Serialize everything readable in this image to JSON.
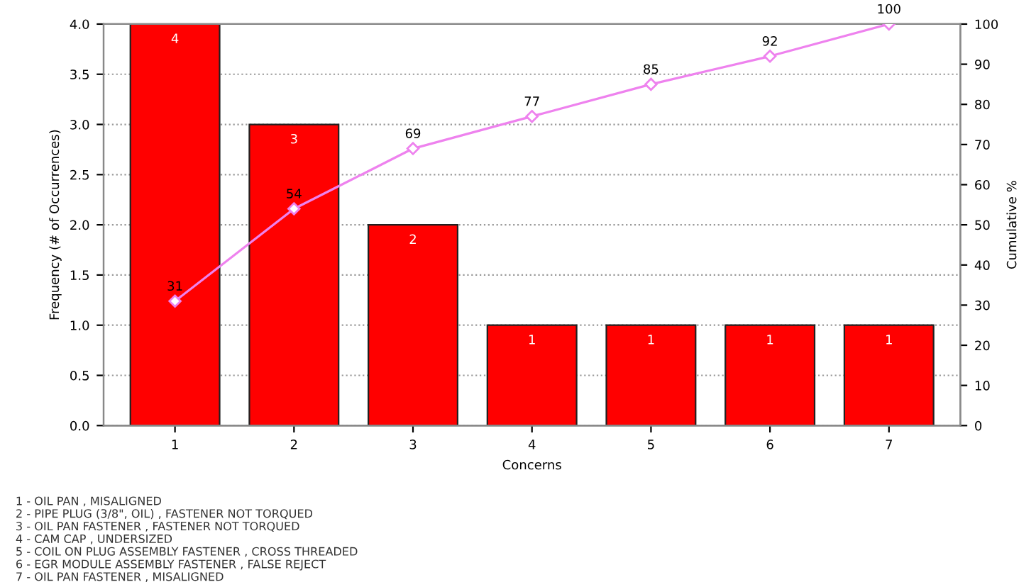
{
  "chart_data": {
    "type": "bar",
    "xlabel": "Concerns",
    "ylabel": "Frequency (# of Occurrences)",
    "y2label": "Cumulative %",
    "categories": [
      "1",
      "2",
      "3",
      "4",
      "5",
      "6",
      "7"
    ],
    "series": [
      {
        "color": "#ff0000",
        "values": [
          4,
          3,
          2,
          1,
          1,
          1,
          1
        ]
      },
      {
        "type": "line",
        "axis": "y2",
        "color": "#ee82ee",
        "marker": "diamond",
        "values": [
          31,
          54,
          69,
          77,
          85,
          92,
          100
        ]
      }
    ],
    "data_labels": true,
    "ylim": [
      0,
      4
    ],
    "yticks": [
      "0.0",
      "0.5",
      "1.0",
      "1.5",
      "2.0",
      "2.5",
      "3.0",
      "3.5",
      "4.0"
    ],
    "y2lim": [
      0,
      100
    ],
    "y2ticks": [
      0,
      10,
      20,
      30,
      40,
      50,
      60,
      70,
      80,
      90,
      100
    ],
    "grid": "y",
    "annotations": [
      "1 - OIL PAN , MISALIGNED",
      "2 - PIPE PLUG (3/8\", OIL) , FASTENER NOT TORQUED",
      "3 - OIL PAN FASTENER , FASTENER NOT TORQUED",
      "4 - CAM CAP , UNDERSIZED",
      "5 - COIL ON PLUG ASSEMBLY FASTENER , CROSS THREADED",
      "6 - EGR MODULE ASSEMBLY FASTENER , FALSE REJECT",
      "7 - OIL PAN FASTENER , MISALIGNED"
    ]
  }
}
